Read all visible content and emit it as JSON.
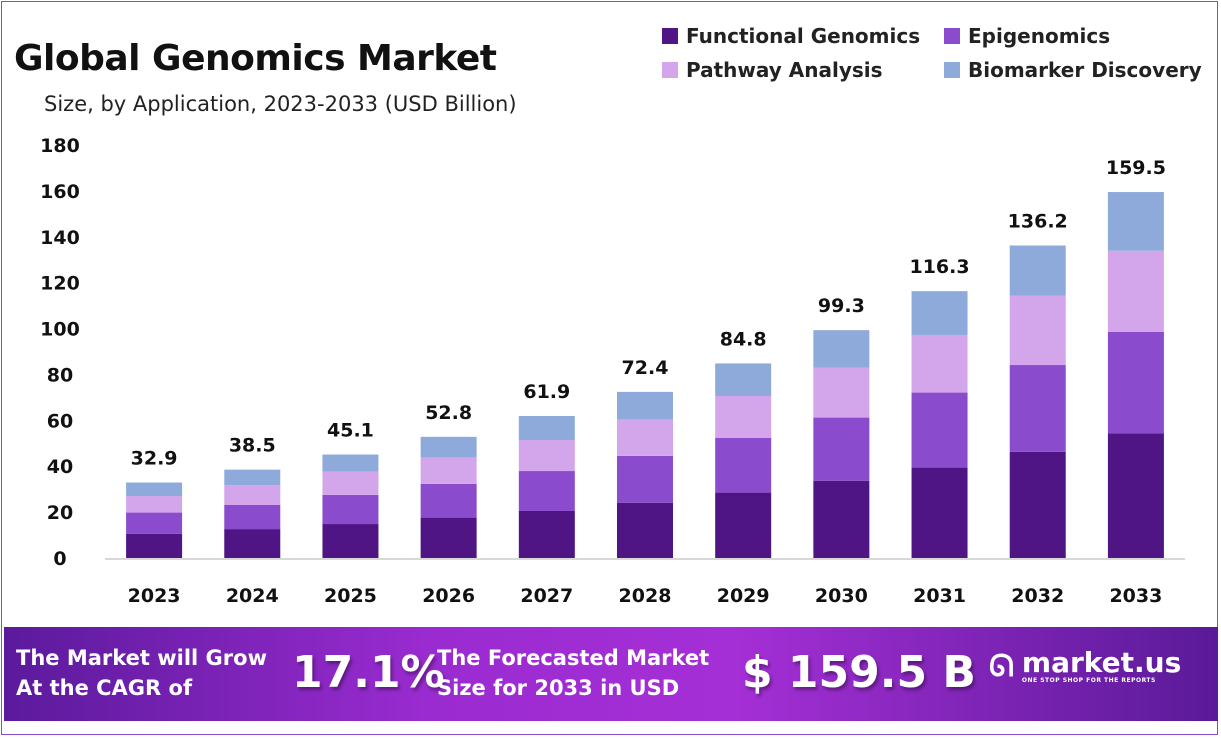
{
  "chart_data": {
    "type": "bar",
    "stacked": true,
    "title": "Global Genomics Market",
    "subtitle": "Size, by Application, 2023-2033 (USD Billion)",
    "xlabel": "",
    "ylabel": "",
    "ylim": [
      0,
      180
    ],
    "yticks": [
      0,
      20,
      40,
      60,
      80,
      100,
      120,
      140,
      160,
      180
    ],
    "grid": false,
    "legend_position": "top-right",
    "categories": [
      "2023",
      "2024",
      "2025",
      "2026",
      "2027",
      "2028",
      "2029",
      "2030",
      "2031",
      "2032",
      "2033"
    ],
    "totals": [
      32.9,
      38.5,
      45.1,
      52.8,
      61.9,
      72.4,
      84.8,
      99.3,
      116.3,
      136.2,
      159.5
    ],
    "series": [
      {
        "name": "Functional Genomics",
        "color": "#4f1585",
        "values": [
          10.5,
          12.6,
          14.8,
          17.6,
          20.5,
          24.1,
          28.5,
          33.6,
          39.4,
          46.3,
          54.3
        ]
      },
      {
        "name": "Epigenomics",
        "color": "#8a4bcc",
        "values": [
          9.3,
          10.5,
          12.7,
          14.7,
          17.4,
          20.4,
          23.9,
          27.6,
          32.7,
          37.8,
          44.3
        ]
      },
      {
        "name": "Pathway Analysis",
        "color": "#d3a6ec",
        "values": [
          7.2,
          8.7,
          10.1,
          11.4,
          13.5,
          15.9,
          18.2,
          21.7,
          25.1,
          30.2,
          35.3
        ]
      },
      {
        "name": "Biomarker Discovery",
        "color": "#8eaadb",
        "values": [
          5.9,
          6.7,
          7.5,
          9.1,
          10.5,
          12.0,
          14.2,
          16.4,
          19.1,
          21.9,
          25.6
        ]
      }
    ]
  },
  "banner": {
    "cagr_text_1": "The Market will Grow",
    "cagr_text_2": "At the CAGR of",
    "cagr_value": "17.1%",
    "forecast_text_1": "The Forecasted Market",
    "forecast_text_2": "Size for 2033 in USD",
    "forecast_value": "$ 159.5 B",
    "logo_name": "market.us",
    "logo_tagline": "ONE STOP SHOP FOR THE REPORTS"
  }
}
